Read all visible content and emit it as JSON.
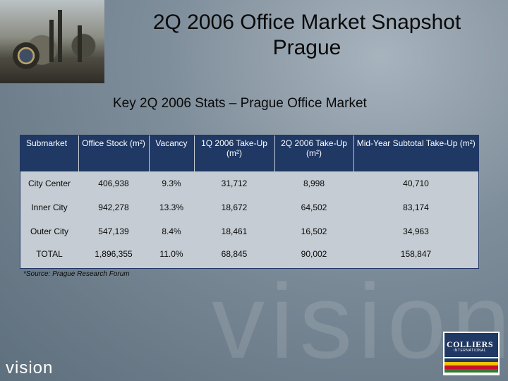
{
  "slide": {
    "title_line1": "2Q 2006 Office Market Snapshot",
    "title_line2": "Prague",
    "subtitle": "Key 2Q 2006 Stats – Prague Office Market",
    "source_note": "*Source: Prague Research Forum",
    "watermark": "vision",
    "footer_text": "vision"
  },
  "table": {
    "headers": [
      "Submarket",
      "Office Stock (m²)",
      "Vacancy",
      "1Q 2006 Take-Up (m²)",
      "2Q 2006 Take-Up (m²)",
      "Mid-Year Subtotal Take-Up (m²)"
    ],
    "rows": [
      [
        "City Center",
        "406,938",
        "9.3%",
        "31,712",
        "8,998",
        "40,710"
      ],
      [
        "Inner City",
        "942,278",
        "13.3%",
        "18,672",
        "64,502",
        "83,174"
      ],
      [
        "Outer City",
        "547,139",
        "8.4%",
        "18,461",
        "16,502",
        "34,963"
      ],
      [
        "TOTAL",
        "1,896,355",
        "11.0%",
        "68,845",
        "90,002",
        "158,847"
      ]
    ]
  },
  "logo": {
    "brand": "COLLIERS",
    "tagline": "INTERNATIONAL",
    "colors": [
      "#1f3864",
      "#f2c200",
      "#c8102e",
      "#2e7d32"
    ]
  }
}
